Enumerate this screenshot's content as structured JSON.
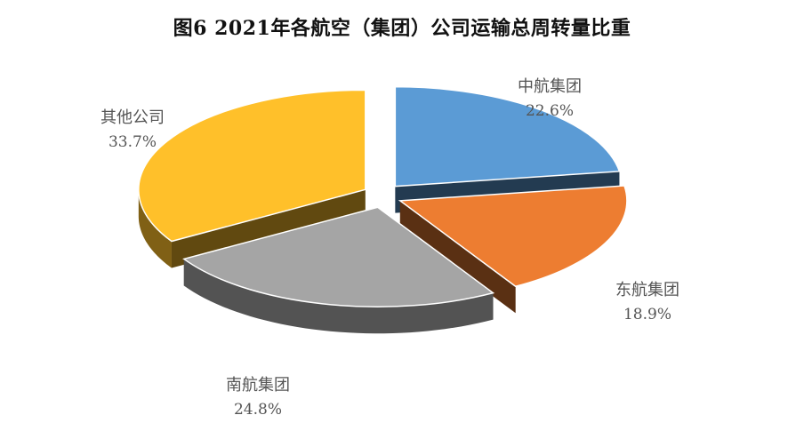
{
  "chart_data": {
    "type": "pie",
    "title": "图6  2021年各航空（集团）公司运输总周转量比重",
    "categories": [
      "中航集团",
      "东航集团",
      "南航集团",
      "其他公司"
    ],
    "values": [
      22.6,
      18.9,
      24.8,
      33.7
    ],
    "value_labels": [
      "22.6%",
      "18.9%",
      "24.8%",
      "33.7%"
    ],
    "colors": [
      "#5b9bd5",
      "#ed7d31",
      "#a5a5a5",
      "#ffc02a"
    ],
    "style": "3d-exploded",
    "legend": "none",
    "data_labels": "outside"
  }
}
